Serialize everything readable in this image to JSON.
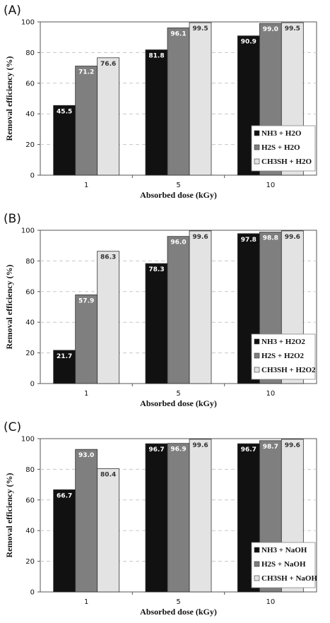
{
  "figure": {
    "series_colors": [
      "#111111",
      "#7f7f7f",
      "#e3e3e3"
    ],
    "label_colors": [
      "#ffffff",
      "#ffffff",
      "#333333"
    ]
  },
  "chart_data": [
    {
      "type": "bar",
      "panel_label": "(A)",
      "categories": [
        "1",
        "5",
        "10"
      ],
      "xlabel": "Absorbed dose (kGy)",
      "ylabel": "Removal efficiency (%)",
      "ylim": [
        0,
        100
      ],
      "yticks": [
        0,
        20,
        40,
        60,
        80,
        100
      ],
      "grid": true,
      "legend_position": "bottom-right",
      "series": [
        {
          "name": "NH3 + H2O",
          "values": [
            45.5,
            81.8,
            90.9
          ],
          "labels": [
            "45.5",
            "81.8",
            "90.9"
          ]
        },
        {
          "name": "H2S + H2O",
          "values": [
            71.2,
            96.1,
            99.0
          ],
          "labels": [
            "71.2",
            "96.1",
            "99.0"
          ]
        },
        {
          "name": "CH3SH + H2O",
          "values": [
            76.6,
            99.5,
            99.5
          ],
          "labels": [
            "76.6",
            "99.5",
            "99.5"
          ]
        }
      ]
    },
    {
      "type": "bar",
      "panel_label": "(B)",
      "categories": [
        "1",
        "5",
        "10"
      ],
      "xlabel": "Absorbed dose (kGy)",
      "ylabel": "Removal efficiency (%)",
      "ylim": [
        0,
        100
      ],
      "yticks": [
        0,
        20,
        40,
        60,
        80,
        100
      ],
      "grid": true,
      "legend_position": "bottom-right",
      "series": [
        {
          "name": "NH3 + H2O2",
          "values": [
            21.7,
            78.3,
            97.8
          ],
          "labels": [
            "21.7",
            "78.3",
            "97.8"
          ]
        },
        {
          "name": "H2S + H2O2",
          "values": [
            57.9,
            96.0,
            98.8
          ],
          "labels": [
            "57.9",
            "96.0",
            "98.8"
          ]
        },
        {
          "name": "CH3SH + H2O2",
          "values": [
            86.3,
            99.6,
            99.6
          ],
          "labels": [
            "86.3",
            "99.6",
            "99.6"
          ]
        }
      ]
    },
    {
      "type": "bar",
      "panel_label": "(C)",
      "categories": [
        "1",
        "5",
        "10"
      ],
      "xlabel": "Absorbed dose (kGy)",
      "ylabel": "Removal efficiency (%)",
      "ylim": [
        0,
        100
      ],
      "yticks": [
        0,
        20,
        40,
        60,
        80,
        100
      ],
      "grid": true,
      "legend_position": "bottom-right",
      "series": [
        {
          "name": "NH3 + NaOH",
          "values": [
            66.7,
            96.7,
            96.7
          ],
          "labels": [
            "66.7",
            "96.7",
            "96.7"
          ]
        },
        {
          "name": "H2S + NaOH",
          "values": [
            93.0,
            96.9,
            98.7
          ],
          "labels": [
            "93.0",
            "96.9",
            "98.7"
          ]
        },
        {
          "name": "CH3SH + NaOH",
          "values": [
            80.4,
            99.6,
            99.6
          ],
          "labels": [
            "80.4",
            "99.6",
            "99.6"
          ]
        }
      ]
    }
  ]
}
